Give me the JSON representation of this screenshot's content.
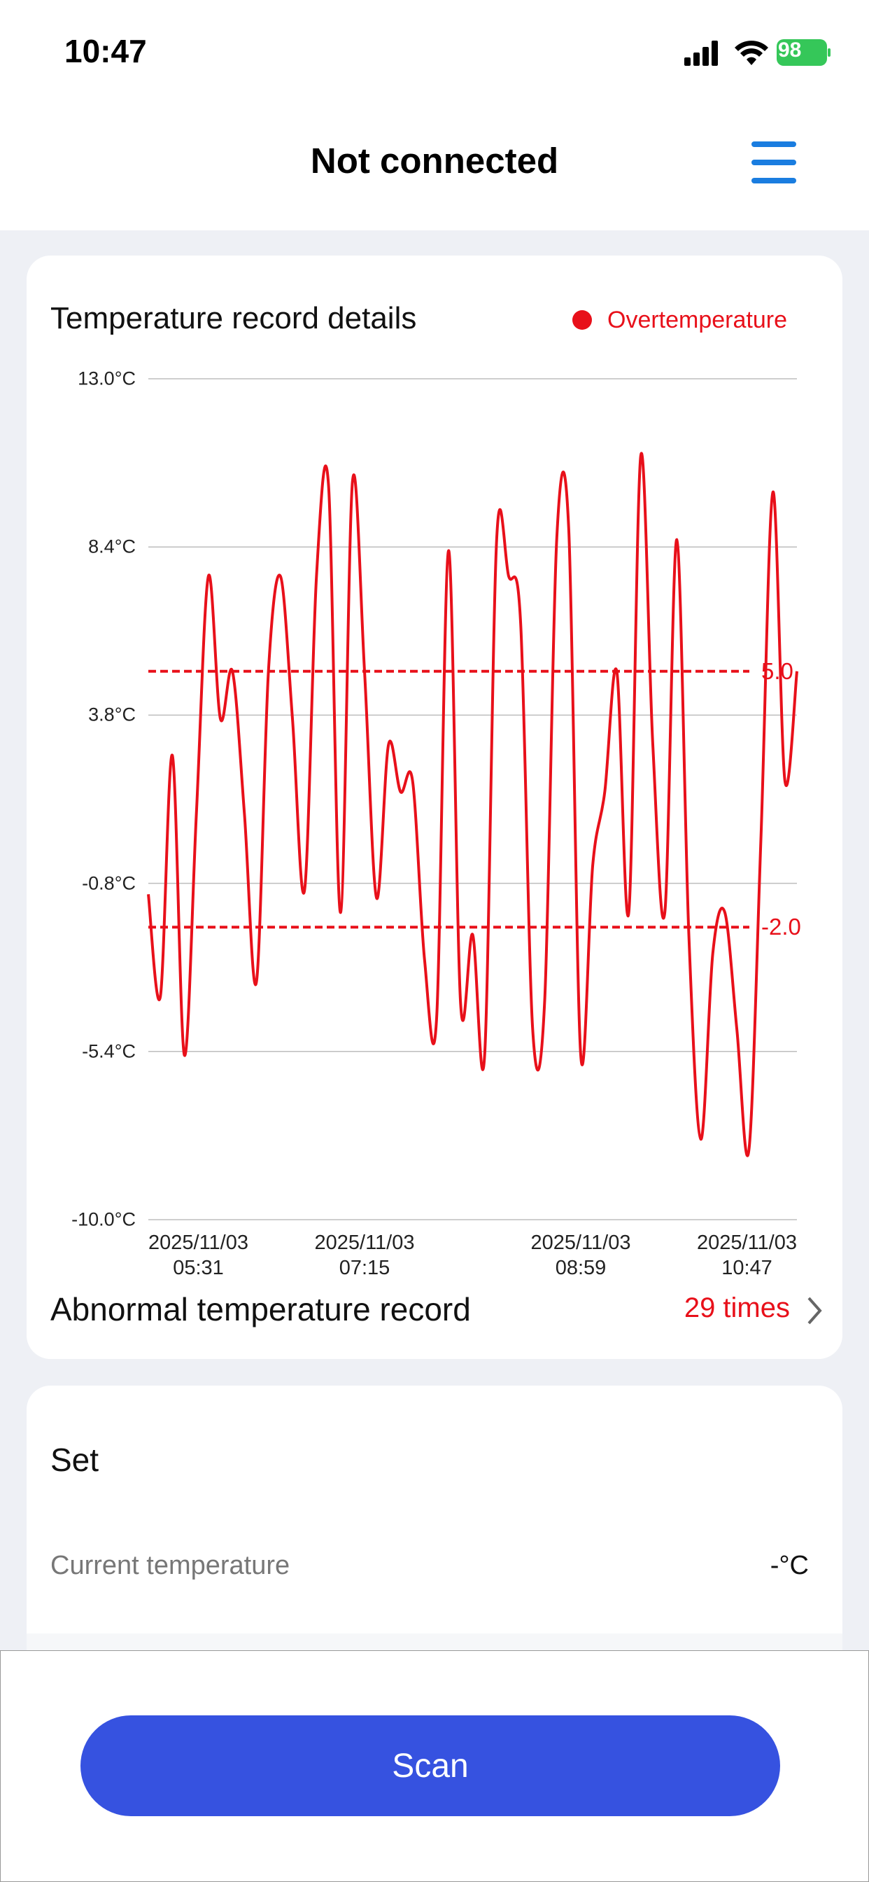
{
  "status": {
    "time": "10:47",
    "battery": "98"
  },
  "header": {
    "title": "Not connected"
  },
  "chart_data": {
    "type": "line",
    "title": "Temperature record details",
    "categories": [
      "2025/11/03\n05:31",
      null,
      null,
      null,
      null,
      null,
      null,
      null,
      null,
      null,
      null,
      null,
      null,
      null,
      null,
      null,
      null,
      null,
      "2025/11/03\n07:15",
      null,
      null,
      null,
      null,
      null,
      null,
      null,
      null,
      null,
      null,
      null,
      null,
      null,
      null,
      null,
      null,
      null,
      "2025/11/03\n08:59",
      null,
      null,
      null,
      null,
      null,
      null,
      null,
      null,
      null,
      null,
      null,
      null,
      null,
      null,
      null,
      null,
      null,
      "2025/11/03\n10:47"
    ],
    "series": [
      {
        "name": "Overtemperature",
        "color": "#e8101a",
        "values": [
          -1.1,
          -3.9,
          2.7,
          -5.5,
          1.1,
          7.6,
          3.7,
          5.0,
          1.1,
          -3.5,
          5.0,
          7.6,
          3.7,
          -1.0,
          7.6,
          10.1,
          -1.6,
          10.2,
          5.0,
          -1.2,
          3.0,
          1.7,
          2.0,
          -2.9,
          -4.5,
          8.3,
          -4.1,
          -2.2,
          -5.5,
          8.6,
          7.6,
          6.3,
          -4.8,
          -4.0,
          8.6,
          8.9,
          -5.5,
          -0.3,
          1.7,
          5.0,
          -1.6,
          10.9,
          3.0,
          -1.6,
          8.6,
          -2.2,
          -7.8,
          -2.7,
          -1.6,
          -4.8,
          -8.1,
          0.4,
          9.9,
          2.0,
          5.0
        ]
      }
    ],
    "ylim": [
      -10,
      13
    ],
    "yticks": [
      {
        "value": 13,
        "label": "13.0°C"
      },
      {
        "value": 8.4,
        "label": "8.4°C"
      },
      {
        "value": 3.8,
        "label": "3.8°C"
      },
      {
        "value": -0.8,
        "label": "-0.8°C"
      },
      {
        "value": -5.4,
        "label": "-5.4°C"
      },
      {
        "value": -10,
        "label": "-10.0°C"
      }
    ],
    "grid": true,
    "threshold_lines": [
      {
        "value": 5,
        "label": "5.0"
      },
      {
        "value": -2,
        "label": "-2.0"
      }
    ]
  },
  "abnormal": {
    "label": "Abnormal temperature record",
    "count": "29 times"
  },
  "settings": {
    "title": "Set",
    "rows": [
      {
        "label": "Current temperature",
        "value": "-°C"
      }
    ]
  },
  "button": {
    "label": "Scan"
  }
}
